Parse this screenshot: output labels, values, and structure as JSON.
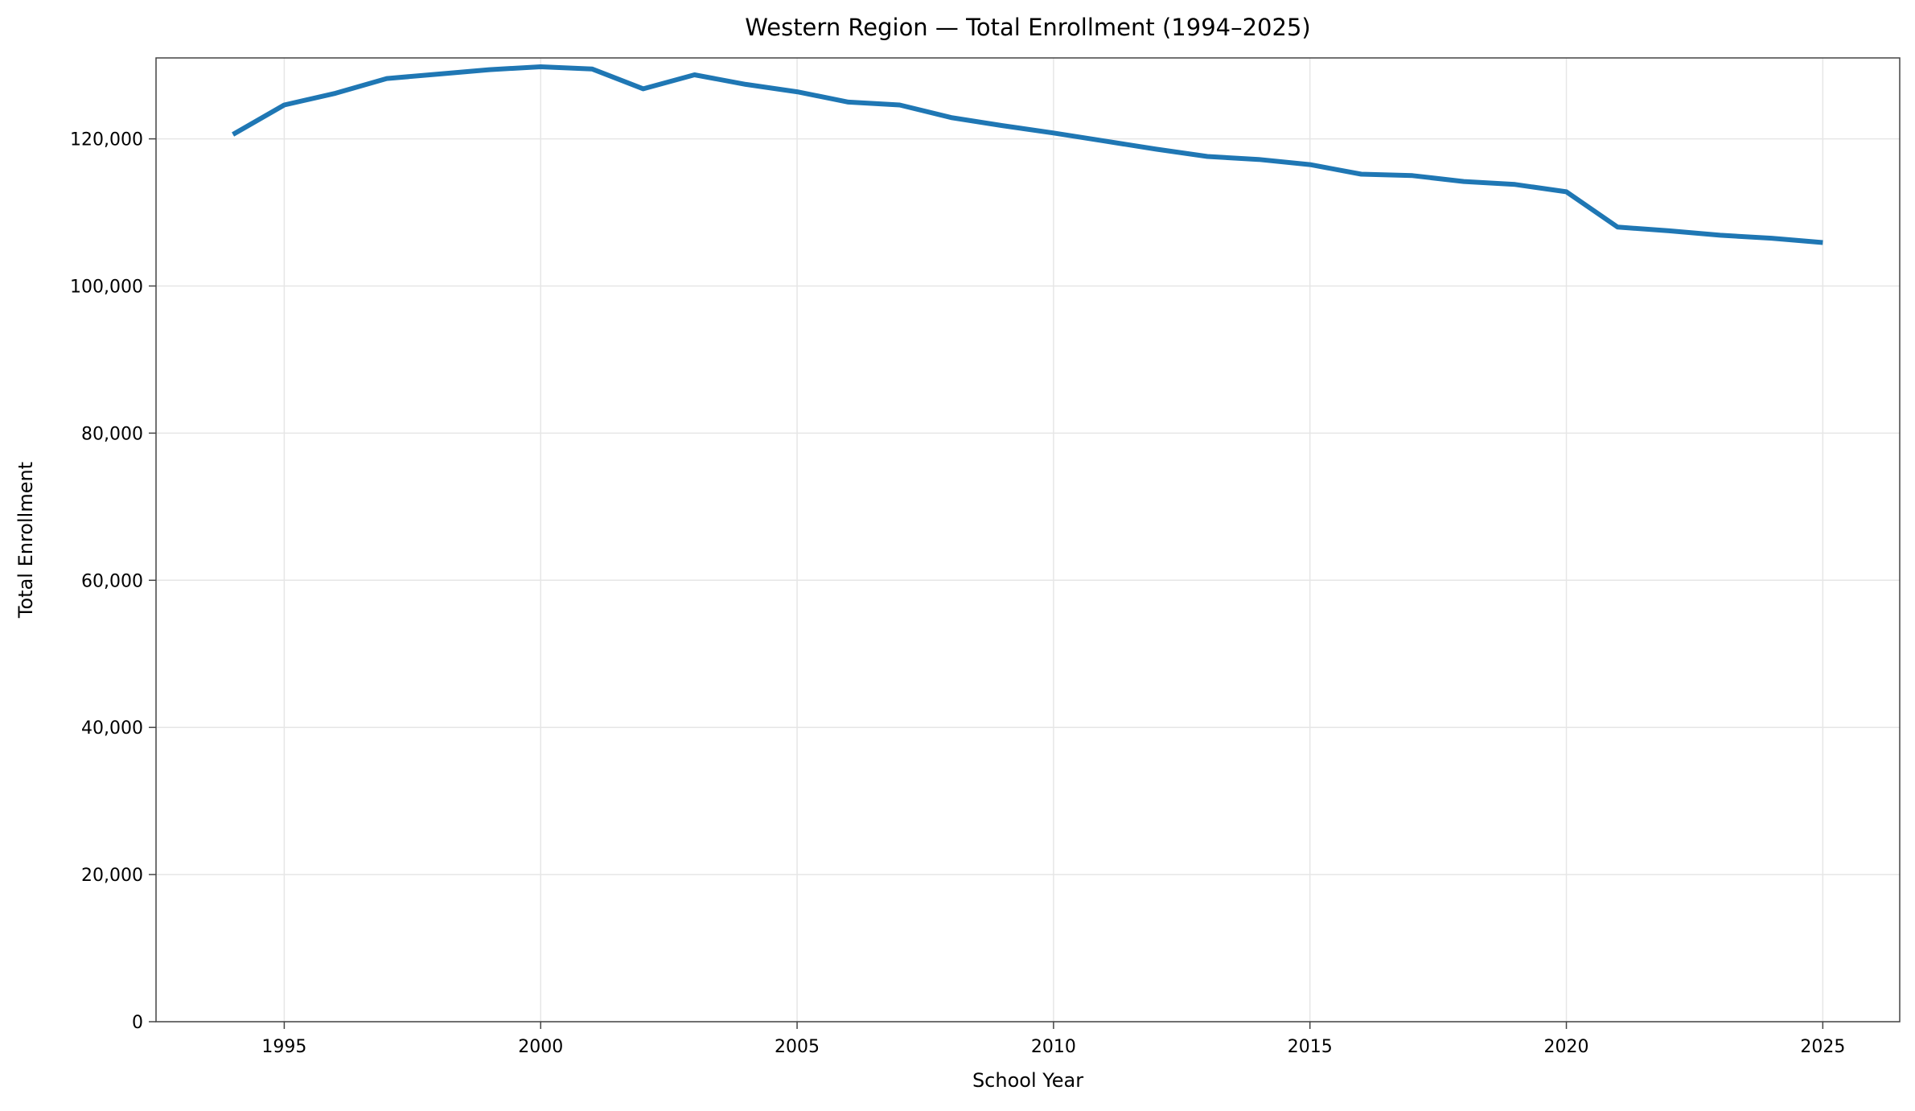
{
  "chart_data": {
    "type": "line",
    "title": "Western Region — Total Enrollment (1994–2025)",
    "xlabel": "School Year",
    "ylabel": "Total Enrollment",
    "xlim": [
      1992.5,
      2026.5
    ],
    "ylim": [
      0,
      131000
    ],
    "x_ticks": [
      1995,
      2000,
      2005,
      2010,
      2015,
      2020,
      2025
    ],
    "y_ticks": [
      0,
      20000,
      40000,
      60000,
      80000,
      100000,
      120000
    ],
    "y_tick_labels": [
      "0",
      "20,000",
      "40,000",
      "60,000",
      "80,000",
      "100,000",
      "120,000"
    ],
    "grid": true,
    "line_color": "#1f77b4",
    "x": [
      1994,
      1995,
      1996,
      1997,
      1998,
      1999,
      2000,
      2001,
      2002,
      2003,
      2004,
      2005,
      2006,
      2007,
      2008,
      2009,
      2010,
      2011,
      2012,
      2013,
      2014,
      2015,
      2016,
      2017,
      2018,
      2019,
      2020,
      2021,
      2022,
      2023,
      2024,
      2025
    ],
    "series": [
      {
        "values": [
          120600,
          124600,
          126200,
          128200,
          128800,
          129400,
          129800,
          129500,
          126800,
          128700,
          127400,
          126400,
          125000,
          124600,
          122900,
          121800,
          120800,
          119700,
          118600,
          117600,
          117200,
          116500,
          115200,
          115000,
          114200,
          113800,
          112800,
          108000,
          107500,
          106900,
          106500,
          105900
        ]
      }
    ]
  }
}
